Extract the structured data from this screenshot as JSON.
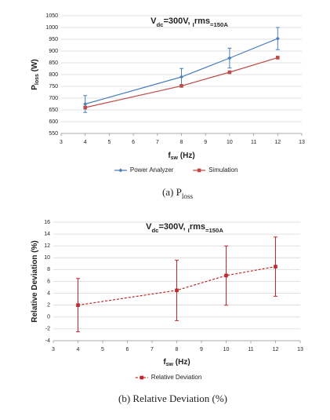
{
  "chart_data": [
    {
      "type": "line",
      "title": [
        "V",
        "dc",
        "=300V, ",
        "I",
        "rms",
        "=150A"
      ],
      "x_label": [
        "f",
        "sw",
        " (Hz)"
      ],
      "y_label": [
        "P",
        "loss",
        " (W)"
      ],
      "caption": [
        "(a)  P",
        "loss"
      ],
      "x": [
        4,
        8,
        10,
        12
      ],
      "series": [
        {
          "name": "Power Analyzer",
          "color": "#4a7ebb",
          "marker": "diamond",
          "dash": false,
          "values": [
            675,
            790,
            870,
            953
          ],
          "errors": [
            36,
            36,
            42,
            47
          ]
        },
        {
          "name": "Simulation",
          "color": "#be4b48",
          "marker": "square",
          "dash": false,
          "values": [
            660,
            752,
            810,
            872
          ]
        }
      ],
      "xlim": [
        3,
        13
      ],
      "xticks": [
        3,
        4,
        5,
        6,
        7,
        8,
        9,
        10,
        11,
        12,
        13
      ],
      "ylim": [
        550,
        1050
      ],
      "yticks": [
        550,
        600,
        650,
        700,
        750,
        800,
        850,
        900,
        950,
        1000,
        1050
      ],
      "grid": true,
      "legend": "bottom"
    },
    {
      "type": "line",
      "title": [
        "V",
        "dc",
        "=300V, ",
        "I",
        "rms",
        "=150A"
      ],
      "x_label": [
        "f",
        "sw",
        " (Hz)"
      ],
      "y_label": [
        "Relative Deviation (%)"
      ],
      "caption": [
        "(b)  Relative Deviation (%)"
      ],
      "x": [
        4,
        8,
        10,
        12
      ],
      "series": [
        {
          "name": "Relative Deviation",
          "color": "#c0282d",
          "marker": "square",
          "dash": true,
          "values": [
            2,
            4.5,
            7,
            8.5
          ],
          "errors": [
            4.5,
            5.1,
            5,
            5
          ]
        }
      ],
      "xlim": [
        3,
        13
      ],
      "xticks": [
        3,
        4,
        5,
        6,
        7,
        8,
        9,
        10,
        11,
        12,
        13
      ],
      "ylim": [
        -4,
        16
      ],
      "yticks": [
        -4,
        -2,
        0,
        2,
        4,
        6,
        8,
        10,
        12,
        14,
        16
      ],
      "grid": true,
      "legend": "bottom"
    }
  ]
}
